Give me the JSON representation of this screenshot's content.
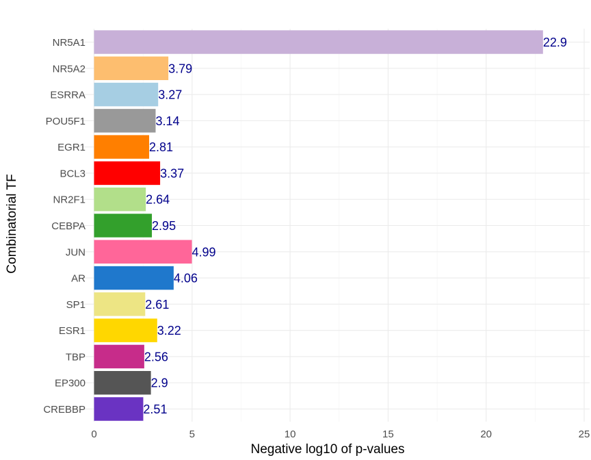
{
  "chart_data": {
    "type": "bar",
    "orientation": "horizontal",
    "xlabel": "Negative log10 of p-values",
    "ylabel": "Combinatorial TF",
    "xlim": [
      0,
      25
    ],
    "xticks": [
      0,
      5,
      10,
      15,
      20,
      25
    ],
    "grid": true,
    "legend": "none",
    "categories": [
      "NR5A1",
      "NR5A2",
      "ESRRA",
      "POU5F1",
      "EGR1",
      "BCL3",
      "NR2F1",
      "CEBPA",
      "JUN",
      "AR",
      "SP1",
      "ESR1",
      "TBP",
      "EP300",
      "CREBBP"
    ],
    "values": [
      22.9,
      3.79,
      3.27,
      3.14,
      2.81,
      3.37,
      2.64,
      2.95,
      4.99,
      4.06,
      2.61,
      3.22,
      2.56,
      2.9,
      2.51
    ],
    "value_labels": [
      "22.9",
      "3.79",
      "3.27",
      "3.14",
      "2.81",
      "3.37",
      "2.64",
      "2.95",
      "4.99",
      "4.06",
      "2.61",
      "3.22",
      "2.56",
      "2.9",
      "2.51"
    ],
    "colors": [
      "#C8B0D8",
      "#FDBE6F",
      "#A6CEE3",
      "#999999",
      "#FF7F00",
      "#FF0000",
      "#B2DF8A",
      "#33A02C",
      "#FF6699",
      "#1F78CC",
      "#EDE584",
      "#FFD700",
      "#C72C8A",
      "#555555",
      "#6A33C2"
    ],
    "label_color": "#00008B"
  }
}
